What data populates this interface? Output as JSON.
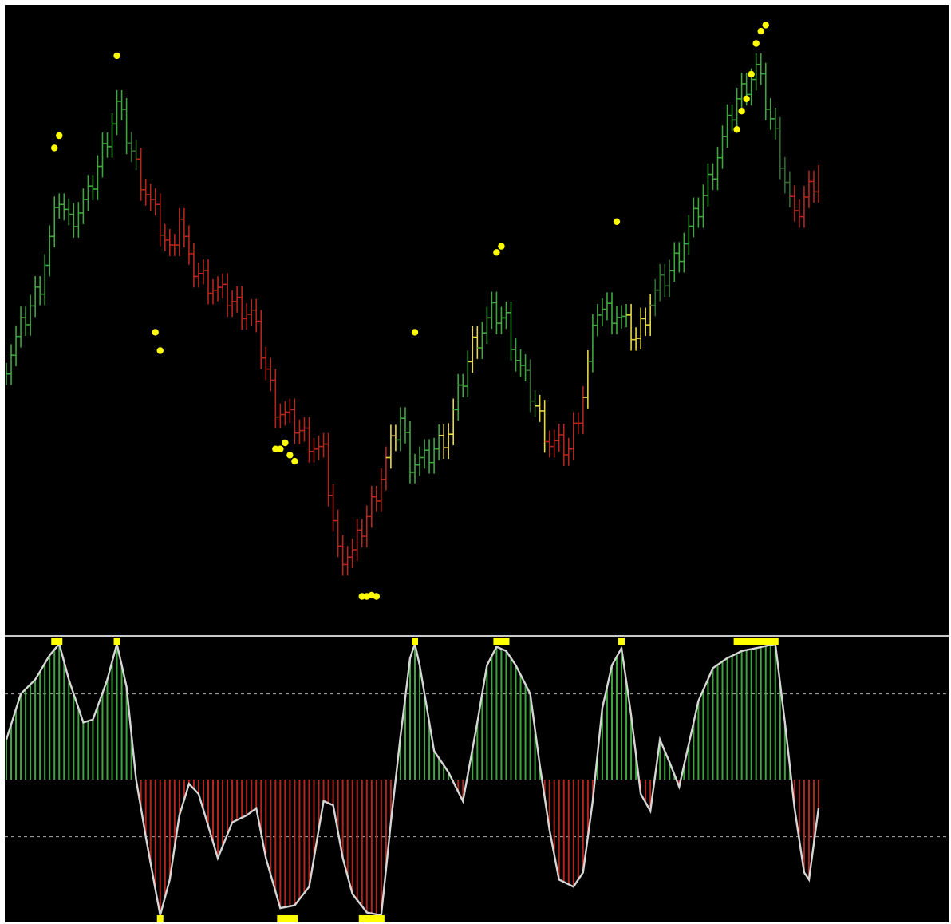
{
  "colors": {
    "background": "#000000",
    "frame": "#ffffff",
    "bull": "#3fa63f",
    "bull_dark": "#2f6b2f",
    "bear": "#b3261e",
    "neutral": "#e6d84a",
    "signal_dot": "#ffff00",
    "osc_line": "#d6d6d6",
    "level_line": "#c8c8c8"
  },
  "chart_data": [
    {
      "type": "bar",
      "subtype": "price_steps",
      "title": "",
      "xlabel": "",
      "ylabel": "",
      "grid": false,
      "legend": "none",
      "ylim": [
        0,
        100
      ],
      "x_count": 170,
      "anchors": [
        {
          "x": 0,
          "y": 43
        },
        {
          "x": 7,
          "y": 56
        },
        {
          "x": 11,
          "y": 70
        },
        {
          "x": 13,
          "y": 66
        },
        {
          "x": 17,
          "y": 70
        },
        {
          "x": 23,
          "y": 85
        },
        {
          "x": 27,
          "y": 75
        },
        {
          "x": 34,
          "y": 61
        },
        {
          "x": 36,
          "y": 67
        },
        {
          "x": 38,
          "y": 59
        },
        {
          "x": 45,
          "y": 54
        },
        {
          "x": 51,
          "y": 51
        },
        {
          "x": 56,
          "y": 36
        },
        {
          "x": 66,
          "y": 28
        },
        {
          "x": 69,
          "y": 12
        },
        {
          "x": 72,
          "y": 12
        },
        {
          "x": 76,
          "y": 20
        },
        {
          "x": 82,
          "y": 34
        },
        {
          "x": 84,
          "y": 27
        },
        {
          "x": 87,
          "y": 27
        },
        {
          "x": 92,
          "y": 32
        },
        {
          "x": 97,
          "y": 46
        },
        {
          "x": 101,
          "y": 51
        },
        {
          "x": 104,
          "y": 50
        },
        {
          "x": 106,
          "y": 44
        },
        {
          "x": 110,
          "y": 36
        },
        {
          "x": 113,
          "y": 30
        },
        {
          "x": 117,
          "y": 29
        },
        {
          "x": 120,
          "y": 38
        },
        {
          "x": 123,
          "y": 52
        },
        {
          "x": 127,
          "y": 51
        },
        {
          "x": 131,
          "y": 47
        },
        {
          "x": 134,
          "y": 53
        },
        {
          "x": 138,
          "y": 58
        },
        {
          "x": 144,
          "y": 68
        },
        {
          "x": 148,
          "y": 77
        },
        {
          "x": 152,
          "y": 86
        },
        {
          "x": 156,
          "y": 91
        },
        {
          "x": 160,
          "y": 80
        },
        {
          "x": 164,
          "y": 66
        },
        {
          "x": 166,
          "y": 70
        },
        {
          "x": 169,
          "y": 74
        }
      ],
      "colors_by_range": [
        {
          "from": 0,
          "to": 25,
          "color": "bull"
        },
        {
          "from": 26,
          "to": 27,
          "color": "bull_dark"
        },
        {
          "from": 28,
          "to": 79,
          "color": "bear"
        },
        {
          "from": 80,
          "to": 81,
          "color": "neutral"
        },
        {
          "from": 82,
          "to": 90,
          "color": "bull"
        },
        {
          "from": 91,
          "to": 93,
          "color": "neutral"
        },
        {
          "from": 94,
          "to": 96,
          "color": "bull"
        },
        {
          "from": 97,
          "to": 98,
          "color": "neutral"
        },
        {
          "from": 99,
          "to": 108,
          "color": "bull"
        },
        {
          "from": 109,
          "to": 110,
          "color": "bull_dark"
        },
        {
          "from": 111,
          "to": 112,
          "color": "neutral"
        },
        {
          "from": 113,
          "to": 120,
          "color": "bear"
        },
        {
          "from": 121,
          "to": 121,
          "color": "neutral"
        },
        {
          "from": 122,
          "to": 129,
          "color": "bull"
        },
        {
          "from": 130,
          "to": 131,
          "color": "neutral"
        },
        {
          "from": 132,
          "to": 134,
          "color": "neutral"
        },
        {
          "from": 135,
          "to": 138,
          "color": "bull_dark"
        },
        {
          "from": 139,
          "to": 160,
          "color": "bull"
        },
        {
          "from": 161,
          "to": 163,
          "color": "bull_dark"
        },
        {
          "from": 164,
          "to": 169,
          "color": "bear"
        }
      ],
      "signal_dots": [
        {
          "x": 10,
          "y": 78
        },
        {
          "x": 11,
          "y": 80
        },
        {
          "x": 23,
          "y": 93
        },
        {
          "x": 31,
          "y": 48
        },
        {
          "x": 32,
          "y": 45
        },
        {
          "x": 56,
          "y": 29
        },
        {
          "x": 57,
          "y": 29
        },
        {
          "x": 58,
          "y": 30
        },
        {
          "x": 59,
          "y": 28
        },
        {
          "x": 60,
          "y": 27
        },
        {
          "x": 74,
          "y": 5
        },
        {
          "x": 75,
          "y": 5
        },
        {
          "x": 76,
          "y": 5.2
        },
        {
          "x": 77,
          "y": 5
        },
        {
          "x": 85,
          "y": 48
        },
        {
          "x": 102,
          "y": 61
        },
        {
          "x": 103,
          "y": 62
        },
        {
          "x": 127,
          "y": 66
        },
        {
          "x": 152,
          "y": 81
        },
        {
          "x": 153,
          "y": 84
        },
        {
          "x": 154,
          "y": 86
        },
        {
          "x": 155,
          "y": 90
        },
        {
          "x": 156,
          "y": 95
        },
        {
          "x": 157,
          "y": 97
        },
        {
          "x": 158,
          "y": 98
        }
      ]
    },
    {
      "type": "bar",
      "subtype": "oscillator_histogram",
      "title": "",
      "xlabel": "",
      "ylabel": "",
      "grid": false,
      "legend": "none",
      "ylim": [
        -100,
        100
      ],
      "levels": [
        60,
        -40
      ],
      "x_count": 170,
      "anchors": [
        {
          "x": 0,
          "y": 28
        },
        {
          "x": 3,
          "y": 60
        },
        {
          "x": 6,
          "y": 70
        },
        {
          "x": 9,
          "y": 87
        },
        {
          "x": 11,
          "y": 95
        },
        {
          "x": 13,
          "y": 70
        },
        {
          "x": 16,
          "y": 40
        },
        {
          "x": 18,
          "y": 42
        },
        {
          "x": 21,
          "y": 70
        },
        {
          "x": 23,
          "y": 95
        },
        {
          "x": 25,
          "y": 65
        },
        {
          "x": 27,
          "y": 0
        },
        {
          "x": 29,
          "y": -40
        },
        {
          "x": 32,
          "y": -95
        },
        {
          "x": 34,
          "y": -70
        },
        {
          "x": 36,
          "y": -25
        },
        {
          "x": 38,
          "y": -3
        },
        {
          "x": 40,
          "y": -10
        },
        {
          "x": 44,
          "y": -55
        },
        {
          "x": 47,
          "y": -30
        },
        {
          "x": 50,
          "y": -25
        },
        {
          "x": 52,
          "y": -20
        },
        {
          "x": 54,
          "y": -55
        },
        {
          "x": 57,
          "y": -90
        },
        {
          "x": 60,
          "y": -88
        },
        {
          "x": 63,
          "y": -75
        },
        {
          "x": 66,
          "y": -15
        },
        {
          "x": 68,
          "y": -18
        },
        {
          "x": 70,
          "y": -55
        },
        {
          "x": 72,
          "y": -80
        },
        {
          "x": 75,
          "y": -93
        },
        {
          "x": 78,
          "y": -95
        },
        {
          "x": 80,
          "y": -30
        },
        {
          "x": 82,
          "y": 30
        },
        {
          "x": 84,
          "y": 85
        },
        {
          "x": 85,
          "y": 95
        },
        {
          "x": 86,
          "y": 80
        },
        {
          "x": 89,
          "y": 20
        },
        {
          "x": 92,
          "y": 5
        },
        {
          "x": 95,
          "y": -15
        },
        {
          "x": 98,
          "y": 40
        },
        {
          "x": 100,
          "y": 80
        },
        {
          "x": 102,
          "y": 93
        },
        {
          "x": 104,
          "y": 90
        },
        {
          "x": 106,
          "y": 80
        },
        {
          "x": 109,
          "y": 60
        },
        {
          "x": 111,
          "y": 10
        },
        {
          "x": 113,
          "y": -35
        },
        {
          "x": 115,
          "y": -70
        },
        {
          "x": 118,
          "y": -75
        },
        {
          "x": 120,
          "y": -65
        },
        {
          "x": 122,
          "y": -15
        },
        {
          "x": 124,
          "y": 50
        },
        {
          "x": 126,
          "y": 80
        },
        {
          "x": 128,
          "y": 92
        },
        {
          "x": 130,
          "y": 45
        },
        {
          "x": 132,
          "y": -10
        },
        {
          "x": 134,
          "y": -22
        },
        {
          "x": 136,
          "y": 28
        },
        {
          "x": 138,
          "y": 12
        },
        {
          "x": 140,
          "y": -5
        },
        {
          "x": 142,
          "y": 25
        },
        {
          "x": 144,
          "y": 55
        },
        {
          "x": 147,
          "y": 78
        },
        {
          "x": 150,
          "y": 85
        },
        {
          "x": 153,
          "y": 90
        },
        {
          "x": 156,
          "y": 92
        },
        {
          "x": 160,
          "y": 95
        },
        {
          "x": 162,
          "y": 40
        },
        {
          "x": 164,
          "y": -20
        },
        {
          "x": 166,
          "y": -65
        },
        {
          "x": 167,
          "y": -70
        },
        {
          "x": 169,
          "y": -20
        }
      ],
      "marker_color": "signal_dot",
      "marker_threshold": 88
    }
  ]
}
